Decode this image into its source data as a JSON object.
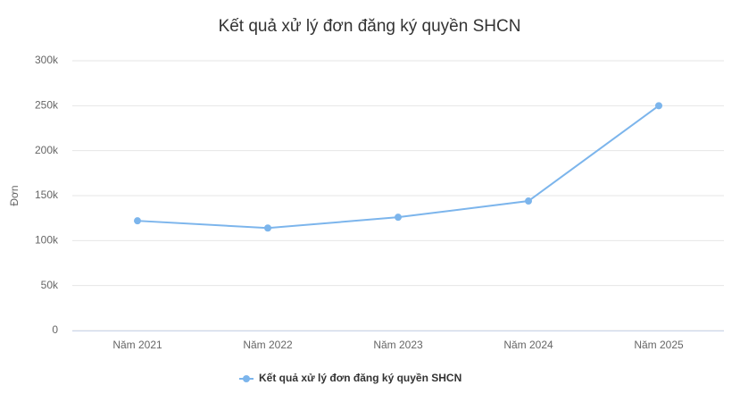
{
  "chart_data": {
    "type": "line",
    "title": "Kết quả xử lý đơn đăng ký quyền SHCN",
    "y_label": "Đơn",
    "categories": [
      "Năm 2021",
      "Năm 2022",
      "Năm 2023",
      "Năm 2024",
      "Năm 2025"
    ],
    "series": [
      {
        "name": "Kết quả xử lý đơn đăng ký quyền SHCN",
        "color": "#7cb5ec",
        "values": [
          122000,
          114000,
          126000,
          144000,
          250000
        ]
      }
    ],
    "ylim": [
      0,
      300000
    ],
    "yticks": [
      0,
      {
        "value": 50000,
        "label": "50k"
      },
      {
        "value": 100000,
        "label": "100k"
      },
      {
        "value": 150000,
        "label": "150k"
      },
      {
        "value": 200000,
        "label": "200k"
      },
      {
        "value": 250000,
        "label": "250k"
      },
      {
        "value": 300000,
        "label": "300k"
      }
    ],
    "grid": true,
    "legend": "bottom"
  }
}
